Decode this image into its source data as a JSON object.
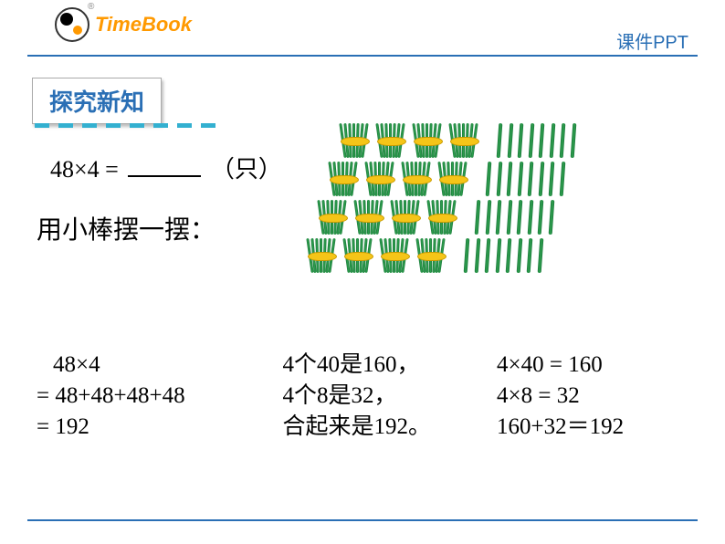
{
  "header": {
    "logo_text": "TimeBook",
    "logo_reg": "®",
    "ppt_label": "课件PPT"
  },
  "section": {
    "title": "探究新知",
    "dash_count": 8,
    "dash_color": "#33b0d0"
  },
  "problem": {
    "expr_left": "48×4 =",
    "unit": "（只）"
  },
  "instruction": "用小棒摆一摆：",
  "sticks": {
    "rows": 4,
    "bundles_per_row": 4,
    "singles_per_row": 8,
    "bundle_color": "#2fa04f",
    "single_color": "#2fa04f",
    "band_color": "#f5c518"
  },
  "solutions": {
    "method1": {
      "line1": "48×4",
      "line2": "= 48+48+48+48",
      "line3": "= 192"
    },
    "method2": {
      "line1": "4个40是160，",
      "line2": "4个8是32，",
      "line3": "合起来是192。"
    },
    "method3": {
      "line1": "4×40 = 160",
      "line2": "4×8 = 32",
      "line3": "160+32＝192"
    }
  },
  "colors": {
    "blue": "#2a6fb5",
    "orange": "#ff9900",
    "background": "#ffffff"
  },
  "fonts": {
    "body_family": "KaiTi",
    "problem_size": 26,
    "solution_size": 25,
    "title_size": 26
  }
}
